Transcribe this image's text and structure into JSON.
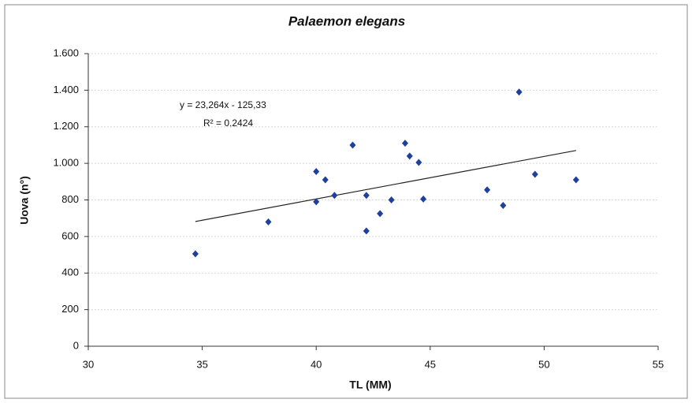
{
  "chart_data": {
    "type": "scatter",
    "title": "Palaemon elegans",
    "x_label": "TL (MM)",
    "y_label": "Uova (n°)",
    "equation": "y = 23,264x - 125,33",
    "r_squared": "R² = 0,2424",
    "trendline": {
      "slope": 23.264,
      "intercept": -125.33
    },
    "color": "#1f3f9f",
    "grid": true,
    "xlim": [
      30,
      55
    ],
    "xticks": [
      30,
      35,
      40,
      45,
      50,
      55
    ],
    "ylim": [
      0,
      1600
    ],
    "yticks": [
      0,
      200,
      400,
      600,
      800,
      {
        "value": 1000,
        "label": "1.000"
      },
      {
        "value": 1200,
        "label": "1.200"
      },
      {
        "value": 1400,
        "label": "1.400"
      },
      {
        "value": 1600,
        "label": "1.600"
      }
    ],
    "x": [
      34.7,
      37.9,
      40.0,
      40.0,
      40.4,
      40.8,
      41.6,
      42.2,
      42.2,
      42.8,
      43.3,
      43.9,
      44.1,
      44.5,
      44.7,
      47.5,
      48.2,
      48.9,
      49.6,
      51.4
    ],
    "values": [
      505,
      680,
      955,
      790,
      910,
      825,
      1100,
      825,
      630,
      725,
      800,
      1110,
      1040,
      1005,
      805,
      855,
      770,
      1390,
      940,
      910
    ]
  }
}
